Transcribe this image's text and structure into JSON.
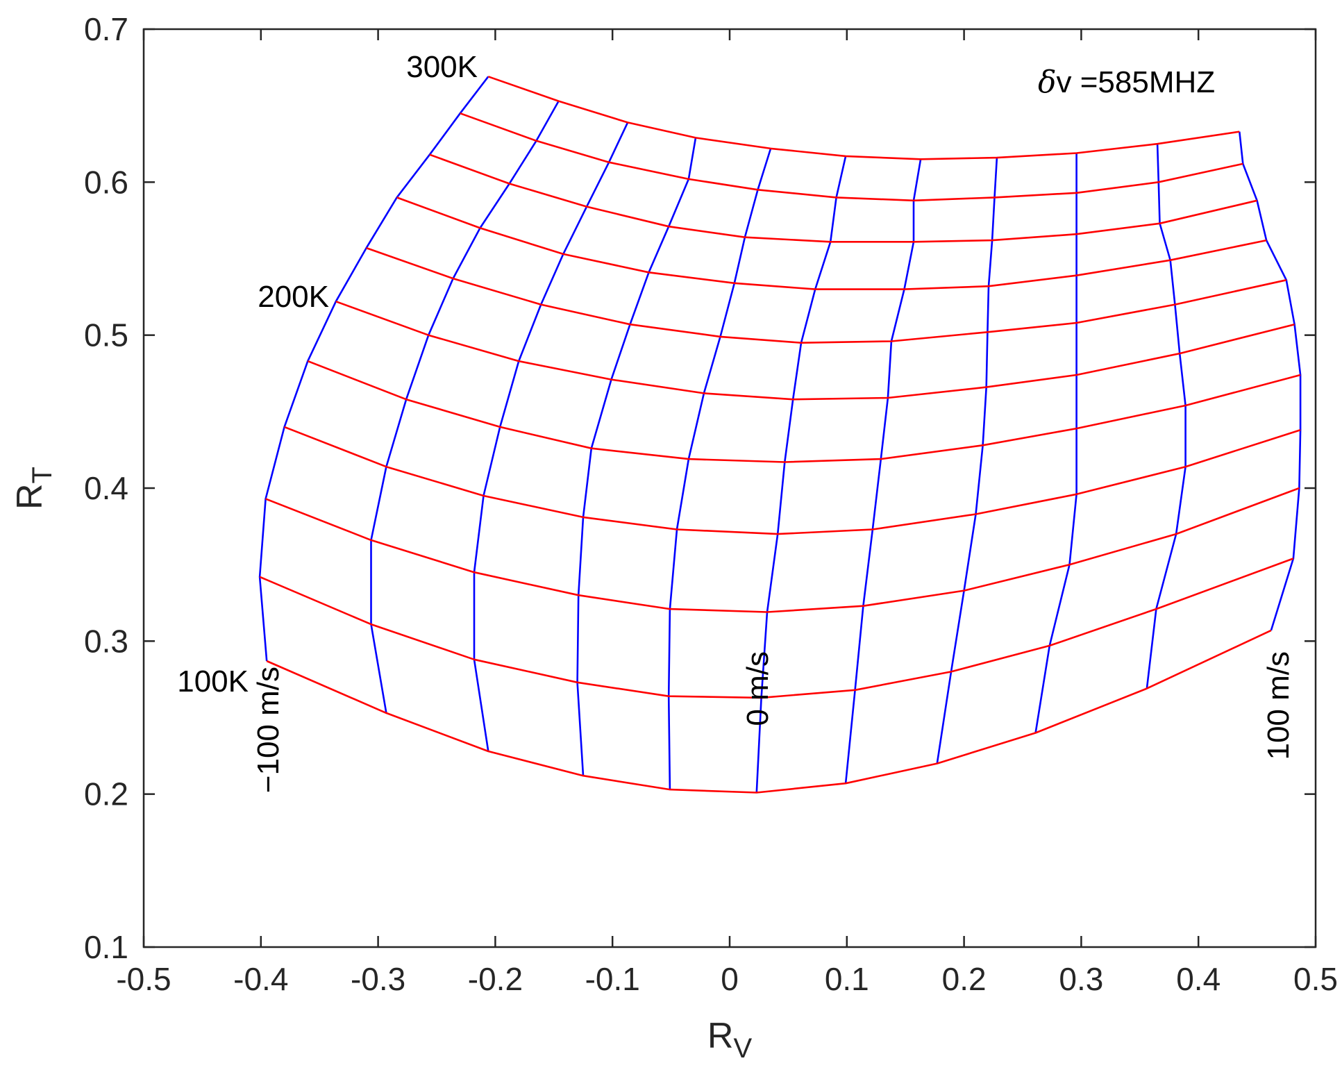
{
  "chart_data": {
    "type": "line",
    "xlabel": {
      "main": "R",
      "sub": "V"
    },
    "ylabel": {
      "main": "R",
      "sub": "T"
    },
    "xlim": [
      -0.5,
      0.5
    ],
    "ylim": [
      0.1,
      0.7
    ],
    "xticks": [
      -0.5,
      -0.4,
      -0.3,
      -0.2,
      -0.1,
      0,
      0.1,
      0.2,
      0.3,
      0.4,
      0.5
    ],
    "yticks": [
      0.1,
      0.2,
      0.3,
      0.4,
      0.5,
      0.6,
      0.7
    ],
    "xtick_labels": [
      "-0.5",
      "-0.4",
      "-0.3",
      "-0.2",
      "-0.1",
      "0",
      "0.1",
      "0.2",
      "0.3",
      "0.4",
      "0.5"
    ],
    "ytick_labels": [
      "0.1",
      "0.2",
      "0.3",
      "0.4",
      "0.5",
      "0.6",
      "0.7"
    ],
    "grid": false,
    "colors": {
      "temperature_lines": "#ff0000",
      "velocity_lines": "#0000ff",
      "axes": "#262626"
    },
    "annotations": {
      "label_300K": "300K",
      "label_200K": "200K",
      "label_100K": "100K",
      "label_neg100": "−100 m/s",
      "label_0": "0 m/s",
      "label_100": "100 m/s",
      "title_delta": "δ",
      "title_rest": "v =585MHZ"
    },
    "grid_points": [
      [
        [
          -0.395,
          0.287
        ],
        [
          -0.293,
          0.253
        ],
        [
          -0.206,
          0.228
        ],
        [
          -0.125,
          0.212
        ],
        [
          -0.051,
          0.203
        ],
        [
          0.023,
          0.201
        ],
        [
          0.099,
          0.207
        ],
        [
          0.177,
          0.22
        ],
        [
          0.261,
          0.24
        ],
        [
          0.356,
          0.269
        ],
        [
          0.462,
          0.307
        ]
      ],
      [
        [
          -0.401,
          0.342
        ],
        [
          -0.306,
          0.311
        ],
        [
          -0.218,
          0.288
        ],
        [
          -0.13,
          0.273
        ],
        [
          -0.052,
          0.264
        ],
        [
          0.027,
          0.263
        ],
        [
          0.107,
          0.268
        ],
        [
          0.189,
          0.28
        ],
        [
          0.273,
          0.297
        ],
        [
          0.364,
          0.321
        ],
        [
          0.481,
          0.354
        ]
      ],
      [
        [
          -0.396,
          0.393
        ],
        [
          -0.306,
          0.366
        ],
        [
          -0.218,
          0.345
        ],
        [
          -0.129,
          0.33
        ],
        [
          -0.051,
          0.321
        ],
        [
          0.032,
          0.319
        ],
        [
          0.114,
          0.323
        ],
        [
          0.2,
          0.333
        ],
        [
          0.29,
          0.35
        ],
        [
          0.381,
          0.37
        ],
        [
          0.486,
          0.4
        ]
      ],
      [
        [
          -0.38,
          0.44
        ],
        [
          -0.293,
          0.414
        ],
        [
          -0.21,
          0.395
        ],
        [
          -0.125,
          0.381
        ],
        [
          -0.045,
          0.373
        ],
        [
          0.041,
          0.37
        ],
        [
          0.122,
          0.373
        ],
        [
          0.21,
          0.383
        ],
        [
          0.296,
          0.396
        ],
        [
          0.389,
          0.414
        ],
        [
          0.487,
          0.438
        ]
      ],
      [
        [
          -0.36,
          0.483
        ],
        [
          -0.276,
          0.458
        ],
        [
          -0.196,
          0.44
        ],
        [
          -0.118,
          0.426
        ],
        [
          -0.035,
          0.419
        ],
        [
          0.047,
          0.417
        ],
        [
          0.129,
          0.419
        ],
        [
          0.216,
          0.428
        ],
        [
          0.296,
          0.439
        ],
        [
          0.389,
          0.454
        ],
        [
          0.487,
          0.474
        ]
      ],
      [
        [
          -0.336,
          0.522
        ],
        [
          -0.257,
          0.5
        ],
        [
          -0.18,
          0.483
        ],
        [
          -0.101,
          0.471
        ],
        [
          -0.022,
          0.462
        ],
        [
          0.054,
          0.458
        ],
        [
          0.135,
          0.459
        ],
        [
          0.219,
          0.466
        ],
        [
          0.296,
          0.474
        ],
        [
          0.384,
          0.488
        ],
        [
          0.482,
          0.507
        ]
      ],
      [
        [
          -0.31,
          0.557
        ],
        [
          -0.236,
          0.537
        ],
        [
          -0.161,
          0.52
        ],
        [
          -0.085,
          0.507
        ],
        [
          -0.008,
          0.499
        ],
        [
          0.061,
          0.495
        ],
        [
          0.138,
          0.496
        ],
        [
          0.22,
          0.502
        ],
        [
          0.296,
          0.508
        ],
        [
          0.38,
          0.52
        ],
        [
          0.475,
          0.536
        ]
      ],
      [
        [
          -0.284,
          0.59
        ],
        [
          -0.213,
          0.57
        ],
        [
          -0.142,
          0.553
        ],
        [
          -0.069,
          0.541
        ],
        [
          0.004,
          0.534
        ],
        [
          0.073,
          0.53
        ],
        [
          0.149,
          0.53
        ],
        [
          0.221,
          0.532
        ],
        [
          0.296,
          0.539
        ],
        [
          0.376,
          0.549
        ],
        [
          0.458,
          0.562
        ]
      ],
      [
        [
          -0.256,
          0.618
        ],
        [
          -0.188,
          0.599
        ],
        [
          -0.122,
          0.584
        ],
        [
          -0.052,
          0.571
        ],
        [
          0.013,
          0.564
        ],
        [
          0.086,
          0.561
        ],
        [
          0.157,
          0.561
        ],
        [
          0.224,
          0.562
        ],
        [
          0.296,
          0.566
        ],
        [
          0.367,
          0.573
        ],
        [
          0.45,
          0.588
        ]
      ],
      [
        [
          -0.23,
          0.645
        ],
        [
          -0.165,
          0.627
        ],
        [
          -0.103,
          0.613
        ],
        [
          -0.035,
          0.602
        ],
        [
          0.024,
          0.595
        ],
        [
          0.091,
          0.59
        ],
        [
          0.157,
          0.588
        ],
        [
          0.226,
          0.59
        ],
        [
          0.296,
          0.593
        ],
        [
          0.366,
          0.6
        ],
        [
          0.438,
          0.612
        ]
      ],
      [
        [
          -0.206,
          0.669
        ],
        [
          -0.146,
          0.653
        ],
        [
          -0.087,
          0.639
        ],
        [
          -0.029,
          0.629
        ],
        [
          0.035,
          0.622
        ],
        [
          0.099,
          0.617
        ],
        [
          0.163,
          0.615
        ],
        [
          0.228,
          0.616
        ],
        [
          0.296,
          0.619
        ],
        [
          0.365,
          0.625
        ],
        [
          0.435,
          0.633
        ]
      ]
    ]
  }
}
